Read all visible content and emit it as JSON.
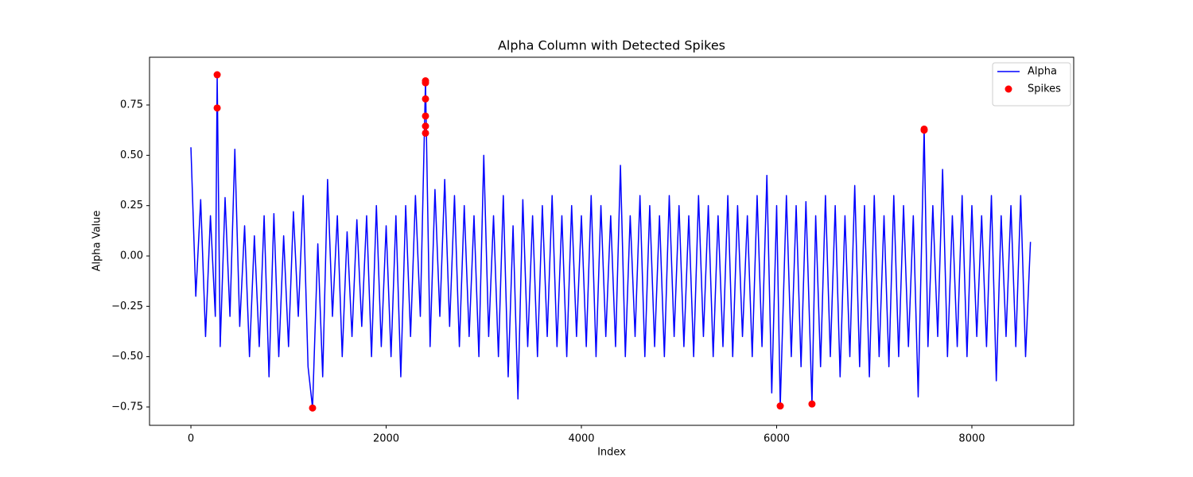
{
  "chart_data": {
    "type": "line",
    "title": "Alpha Column with Detected Spikes",
    "x_label": "Index",
    "y_label": "Alpha Value",
    "xlim": [
      -424,
      9043
    ],
    "ylim": [
      -0.841,
      0.987
    ],
    "xticks": [
      0,
      2000,
      4000,
      6000,
      8000
    ],
    "yticks": [
      {
        "value": -0.75,
        "label": "−0.75"
      },
      {
        "value": -0.5,
        "label": "−0.50"
      },
      {
        "value": -0.25,
        "label": "−0.25"
      },
      {
        "value": 0,
        "label": "0.00"
      },
      {
        "value": 0.25,
        "label": "0.25"
      },
      {
        "value": 0.5,
        "label": "0.50"
      },
      {
        "value": 0.75,
        "label": "0.75"
      }
    ],
    "grid": false,
    "legend": "upper right",
    "series": [
      {
        "name": "Alpha",
        "type": "line",
        "color": "#0000ff",
        "x": [
          0,
          50,
          100,
          150,
          200,
          250,
          269,
          300,
          350,
          400,
          450,
          500,
          550,
          600,
          650,
          700,
          750,
          800,
          850,
          900,
          950,
          1000,
          1050,
          1100,
          1150,
          1200,
          1246,
          1300,
          1350,
          1400,
          1450,
          1500,
          1550,
          1600,
          1650,
          1700,
          1750,
          1800,
          1850,
          1900,
          1950,
          2000,
          2050,
          2100,
          2150,
          2200,
          2250,
          2300,
          2350,
          2403,
          2450,
          2500,
          2550,
          2600,
          2650,
          2700,
          2750,
          2800,
          2850,
          2900,
          2950,
          3000,
          3050,
          3100,
          3150,
          3200,
          3250,
          3300,
          3350,
          3400,
          3450,
          3500,
          3550,
          3600,
          3650,
          3700,
          3750,
          3800,
          3850,
          3900,
          3950,
          4000,
          4050,
          4100,
          4150,
          4200,
          4250,
          4300,
          4350,
          4400,
          4450,
          4500,
          4550,
          4600,
          4650,
          4700,
          4750,
          4800,
          4850,
          4900,
          4950,
          5000,
          5050,
          5100,
          5150,
          5200,
          5250,
          5300,
          5350,
          5400,
          5450,
          5500,
          5550,
          5600,
          5650,
          5700,
          5750,
          5800,
          5850,
          5900,
          5950,
          6000,
          6037,
          6100,
          6150,
          6200,
          6250,
          6300,
          6362,
          6400,
          6450,
          6500,
          6550,
          6600,
          6650,
          6700,
          6750,
          6800,
          6850,
          6900,
          6950,
          7000,
          7050,
          7100,
          7150,
          7200,
          7250,
          7300,
          7350,
          7400,
          7450,
          7511,
          7550,
          7600,
          7650,
          7700,
          7750,
          7800,
          7850,
          7900,
          7950,
          8000,
          8050,
          8100,
          8150,
          8200,
          8250,
          8300,
          8350,
          8400,
          8450,
          8500,
          8550,
          8600
        ],
        "values": [
          0.54,
          -0.2,
          0.28,
          -0.4,
          0.2,
          -0.3,
          0.9,
          -0.45,
          0.29,
          -0.3,
          0.53,
          -0.35,
          0.15,
          -0.5,
          0.1,
          -0.45,
          0.2,
          -0.6,
          0.21,
          -0.5,
          0.1,
          -0.45,
          0.22,
          -0.3,
          0.3,
          -0.55,
          -0.755,
          0.06,
          -0.6,
          0.38,
          -0.3,
          0.2,
          -0.5,
          0.12,
          -0.4,
          0.18,
          -0.35,
          0.2,
          -0.5,
          0.25,
          -0.45,
          0.15,
          -0.5,
          0.2,
          -0.6,
          0.25,
          -0.4,
          0.3,
          -0.3,
          0.87,
          -0.45,
          0.33,
          -0.3,
          0.38,
          -0.35,
          0.3,
          -0.45,
          0.25,
          -0.4,
          0.2,
          -0.5,
          0.5,
          -0.4,
          0.2,
          -0.5,
          0.3,
          -0.6,
          0.15,
          -0.71,
          0.28,
          -0.45,
          0.2,
          -0.5,
          0.25,
          -0.4,
          0.3,
          -0.45,
          0.2,
          -0.5,
          0.25,
          -0.4,
          0.2,
          -0.45,
          0.3,
          -0.5,
          0.25,
          -0.4,
          0.2,
          -0.45,
          0.45,
          -0.5,
          0.2,
          -0.4,
          0.3,
          -0.5,
          0.25,
          -0.45,
          0.2,
          -0.5,
          0.3,
          -0.4,
          0.25,
          -0.45,
          0.2,
          -0.5,
          0.3,
          -0.4,
          0.25,
          -0.5,
          0.2,
          -0.45,
          0.3,
          -0.5,
          0.25,
          -0.4,
          0.2,
          -0.5,
          0.3,
          -0.45,
          0.4,
          -0.68,
          0.25,
          -0.745,
          0.3,
          -0.5,
          0.25,
          -0.55,
          0.27,
          -0.735,
          0.2,
          -0.55,
          0.3,
          -0.5,
          0.25,
          -0.6,
          0.2,
          -0.5,
          0.35,
          -0.55,
          0.25,
          -0.6,
          0.3,
          -0.5,
          0.2,
          -0.55,
          0.3,
          -0.5,
          0.25,
          -0.45,
          0.2,
          -0.7,
          0.63,
          -0.45,
          0.25,
          -0.4,
          0.43,
          -0.5,
          0.2,
          -0.45,
          0.3,
          -0.5,
          0.25,
          -0.4,
          0.2,
          -0.45,
          0.3,
          -0.62,
          0.2,
          -0.4,
          0.25,
          -0.45,
          0.3,
          -0.5,
          0.07
        ]
      },
      {
        "name": "Spikes",
        "type": "scatter",
        "color": "#ff0000",
        "x": [
          269,
          269,
          2403,
          2403,
          2403,
          2403,
          2403,
          2403,
          1246,
          6037,
          6362,
          7511,
          7511
        ],
        "values": [
          0.9,
          0.735,
          0.87,
          0.86,
          0.78,
          0.695,
          0.645,
          0.61,
          -0.755,
          -0.745,
          -0.735,
          0.63,
          0.625
        ]
      }
    ]
  }
}
